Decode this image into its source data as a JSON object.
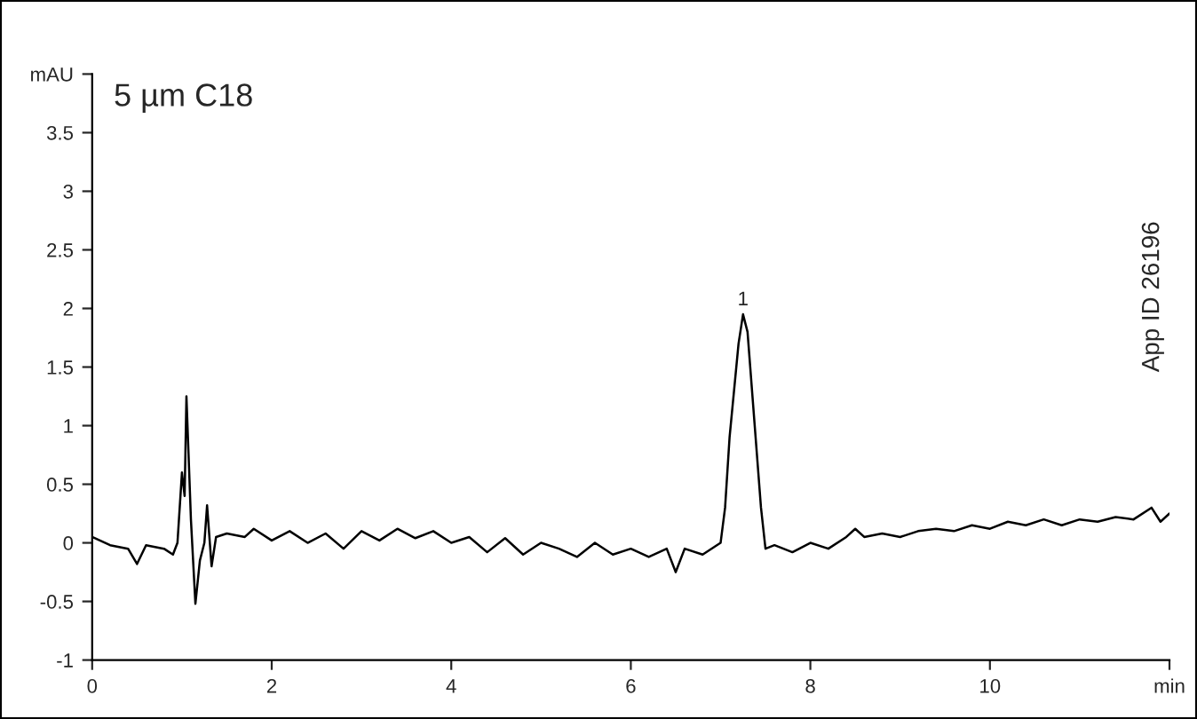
{
  "chart_data": {
    "type": "line",
    "title": "5 µm C18",
    "x": [
      0,
      0.2,
      0.4,
      0.5,
      0.6,
      0.8,
      0.9,
      0.95,
      1.0,
      1.03,
      1.05,
      1.1,
      1.15,
      1.2,
      1.25,
      1.28,
      1.33,
      1.38,
      1.5,
      1.7,
      1.8,
      2.0,
      2.2,
      2.4,
      2.6,
      2.8,
      3.0,
      3.2,
      3.4,
      3.6,
      3.8,
      4.0,
      4.2,
      4.4,
      4.6,
      4.8,
      5.0,
      5.2,
      5.4,
      5.6,
      5.8,
      6.0,
      6.2,
      6.4,
      6.5,
      6.6,
      6.8,
      7.0,
      7.05,
      7.1,
      7.2,
      7.25,
      7.3,
      7.4,
      7.45,
      7.5,
      7.6,
      7.8,
      8.0,
      8.2,
      8.4,
      8.5,
      8.6,
      8.8,
      9.0,
      9.2,
      9.4,
      9.6,
      9.8,
      10.0,
      10.2,
      10.4,
      10.6,
      10.8,
      11.0,
      11.2,
      11.4,
      11.6,
      11.8,
      11.9,
      12.0
    ],
    "series": [
      {
        "color": "#000000",
        "values": [
          0.05,
          -0.02,
          -0.05,
          -0.18,
          -0.02,
          -0.05,
          -0.1,
          0.0,
          0.6,
          0.4,
          1.25,
          0.2,
          -0.52,
          -0.15,
          0.0,
          0.32,
          -0.2,
          0.05,
          0.08,
          0.05,
          0.12,
          0.02,
          0.1,
          0.0,
          0.08,
          -0.05,
          0.1,
          0.02,
          0.12,
          0.04,
          0.1,
          0.0,
          0.05,
          -0.08,
          0.04,
          -0.1,
          0.0,
          -0.05,
          -0.12,
          0.0,
          -0.1,
          -0.05,
          -0.12,
          -0.05,
          -0.25,
          -0.05,
          -0.1,
          0.0,
          0.3,
          0.9,
          1.7,
          1.95,
          1.8,
          0.8,
          0.3,
          -0.05,
          -0.02,
          -0.08,
          0.0,
          -0.05,
          0.05,
          0.12,
          0.05,
          0.08,
          0.05,
          0.1,
          0.12,
          0.1,
          0.15,
          0.12,
          0.18,
          0.15,
          0.2,
          0.15,
          0.2,
          0.18,
          0.22,
          0.2,
          0.3,
          0.18,
          0.25
        ]
      }
    ],
    "xlim": [
      0,
      12
    ],
    "xticks": [
      0,
      2,
      4,
      6,
      8,
      10,
      {
        "value": 12,
        "label": "min"
      }
    ],
    "ylim": [
      -1,
      4
    ],
    "yticks": [
      -1,
      -0.5,
      0,
      0.5,
      1,
      1.5,
      2,
      2.5,
      3,
      3.5,
      {
        "value": 4,
        "label": "mAU"
      }
    ],
    "annotations": [
      {
        "text": "1",
        "x": 7.25,
        "y": 1.95
      },
      "App ID 26196"
    ],
    "grid": false,
    "legend": false,
    "marker": "none",
    "line_style": "solid"
  }
}
